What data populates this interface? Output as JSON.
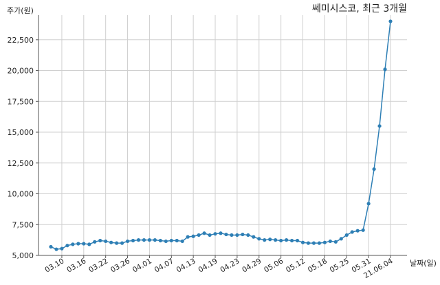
{
  "chart_data": {
    "type": "line",
    "title": "쎄미시스코, 최근 3개월",
    "xlabel": "날짜(일)",
    "ylabel": "주가(원)",
    "ylim": [
      5000,
      24500
    ],
    "yticks": [
      5000,
      7500,
      10000,
      12500,
      15000,
      17500,
      20000,
      22500
    ],
    "ytick_labels": [
      "5,000",
      "7,500",
      "10,000",
      "12,500",
      "15,000",
      "17,500",
      "20,000",
      "22,500"
    ],
    "xtick_labels": [
      "03.10",
      "03.16",
      "03.22",
      "03.26",
      "04.01",
      "04.07",
      "04.13",
      "04.19",
      "04.23",
      "04.29",
      "05.06",
      "05.12",
      "05.18",
      "05.25",
      "05.31",
      "21.06.04"
    ],
    "xtick_index": [
      2,
      6,
      10,
      14,
      18,
      22,
      26,
      30,
      34,
      38,
      42,
      46,
      50,
      54,
      58,
      62
    ],
    "grid": true,
    "line_color": "#2e7fb5",
    "series": [
      {
        "values": [
          5700,
          5500,
          5550,
          5800,
          5900,
          5950,
          5950,
          5900,
          6100,
          6200,
          6150,
          6050,
          6000,
          6000,
          6150,
          6200,
          6250,
          6250,
          6250,
          6250,
          6200,
          6150,
          6200,
          6200,
          6150,
          6500,
          6550,
          6650,
          6800,
          6650,
          6750,
          6800,
          6700,
          6650,
          6650,
          6700,
          6650,
          6500,
          6350,
          6250,
          6300,
          6250,
          6200,
          6250,
          6200,
          6200,
          6050,
          6000,
          6000,
          6000,
          6050,
          6150,
          6100,
          6350,
          6650,
          6900,
          7000,
          7050,
          9200,
          12000,
          15500,
          20100,
          24000
        ]
      }
    ]
  }
}
